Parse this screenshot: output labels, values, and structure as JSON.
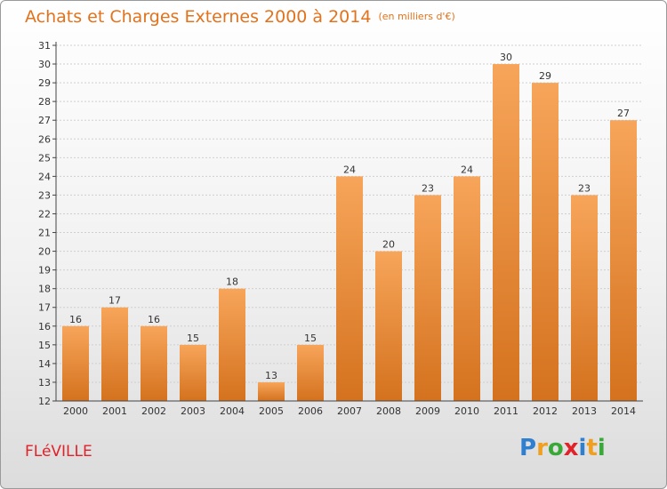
{
  "title": "Achats et Charges Externes 2000 à 2014",
  "subtitle": "(en milliers d'€)",
  "commune": "FLéVILLE",
  "logo": {
    "text": "Proxiti",
    "letters": [
      {
        "ch": "P",
        "color": "#2f7fd0"
      },
      {
        "ch": "r",
        "color": "#f0a020"
      },
      {
        "ch": "o",
        "color": "#39a839"
      },
      {
        "ch": "x",
        "color": "#e0222a"
      },
      {
        "ch": "i",
        "color": "#2f7fd0"
      },
      {
        "ch": "t",
        "color": "#f0a020"
      },
      {
        "ch": "i",
        "color": "#39a839"
      }
    ]
  },
  "colors": {
    "accent": "#e2721c",
    "bar_top": "#f7a55a",
    "bar_bottom": "#d4721e",
    "grid": "#cfcfcf",
    "axis": "#444444"
  },
  "chart_data": {
    "type": "bar",
    "title": "Achats et Charges Externes 2000 à 2014",
    "subtitle": "(en milliers d'€)",
    "categories": [
      "2000",
      "2001",
      "2002",
      "2003",
      "2004",
      "2005",
      "2006",
      "2007",
      "2008",
      "2009",
      "2010",
      "2011",
      "2012",
      "2013",
      "2014"
    ],
    "values": [
      16,
      17,
      16,
      15,
      18,
      13,
      15,
      24,
      20,
      23,
      24,
      30,
      29,
      23,
      27
    ],
    "ylim": [
      12,
      31
    ],
    "yticks": [
      12,
      13,
      14,
      15,
      16,
      17,
      18,
      19,
      20,
      21,
      22,
      23,
      24,
      25,
      26,
      27,
      28,
      29,
      30,
      31
    ],
    "grid": true,
    "data_labels": true
  }
}
